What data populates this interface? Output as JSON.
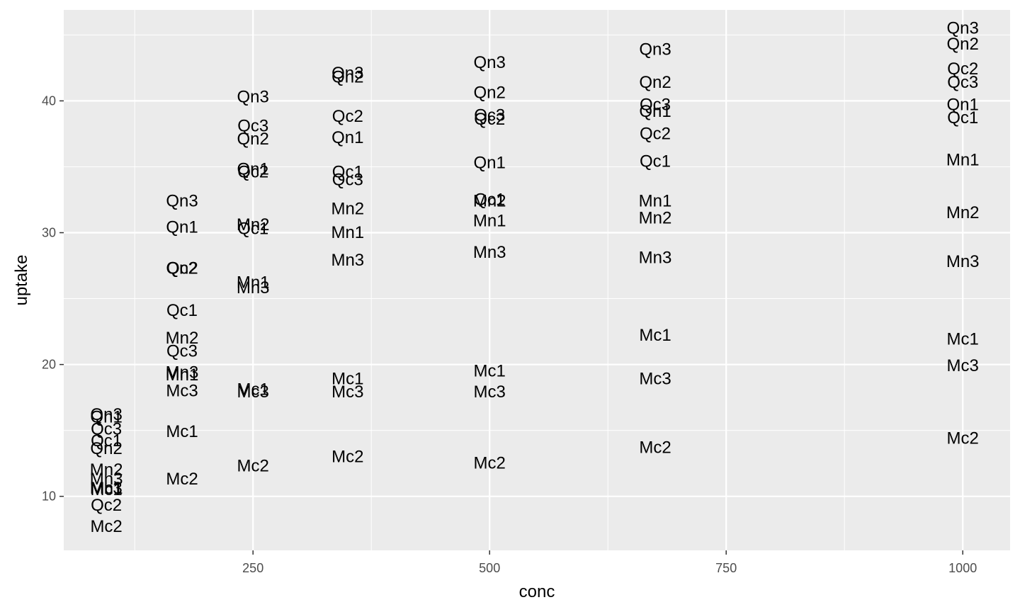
{
  "chart_data": {
    "type": "scatter",
    "marker": "text-labels",
    "xlabel": "conc",
    "ylabel": "uptake",
    "xlim": [
      50,
      1050
    ],
    "ylim": [
      5.9,
      46.9
    ],
    "x_ticks": [
      250,
      500,
      750,
      1000
    ],
    "x_tick_labels": [
      "250",
      "500",
      "750",
      "1000"
    ],
    "x_minor_grid": [
      125,
      375,
      625,
      875
    ],
    "y_ticks": [
      10,
      20,
      30,
      40
    ],
    "y_tick_labels": [
      "10",
      "20",
      "30",
      "40"
    ],
    "y_minor_grid": [
      15,
      25,
      35,
      45
    ],
    "grid": true,
    "legend": "none",
    "colors": {
      "panel_background": "#ebebeb",
      "grid_major": "#ffffff",
      "grid_minor": "#ffffff",
      "label_text": "#000000",
      "tick_text": "#4d4d4d"
    },
    "points": [
      {
        "label": "Qn1",
        "x": 95,
        "y": 16.0
      },
      {
        "label": "Qn2",
        "x": 95,
        "y": 13.6
      },
      {
        "label": "Qn3",
        "x": 95,
        "y": 16.2
      },
      {
        "label": "Qc1",
        "x": 95,
        "y": 14.2
      },
      {
        "label": "Qc2",
        "x": 95,
        "y": 9.3
      },
      {
        "label": "Qc3",
        "x": 95,
        "y": 15.1
      },
      {
        "label": "Mn1",
        "x": 95,
        "y": 10.6
      },
      {
        "label": "Mn2",
        "x": 95,
        "y": 12.0
      },
      {
        "label": "Mn3",
        "x": 95,
        "y": 11.3
      },
      {
        "label": "Mc1",
        "x": 95,
        "y": 10.5
      },
      {
        "label": "Mc2",
        "x": 95,
        "y": 7.7
      },
      {
        "label": "Mc3",
        "x": 95,
        "y": 10.6
      },
      {
        "label": "Qn1",
        "x": 175,
        "y": 30.4
      },
      {
        "label": "Qn2",
        "x": 175,
        "y": 27.3
      },
      {
        "label": "Qn3",
        "x": 175,
        "y": 32.4
      },
      {
        "label": "Qc1",
        "x": 175,
        "y": 24.1
      },
      {
        "label": "Qc2",
        "x": 175,
        "y": 27.3
      },
      {
        "label": "Qc3",
        "x": 175,
        "y": 21.0
      },
      {
        "label": "Mn1",
        "x": 175,
        "y": 19.2
      },
      {
        "label": "Mn2",
        "x": 175,
        "y": 22.0
      },
      {
        "label": "Mn3",
        "x": 175,
        "y": 19.4
      },
      {
        "label": "Mc1",
        "x": 175,
        "y": 14.9
      },
      {
        "label": "Mc2",
        "x": 175,
        "y": 11.3
      },
      {
        "label": "Mc3",
        "x": 175,
        "y": 18.0
      },
      {
        "label": "Qn1",
        "x": 250,
        "y": 34.8
      },
      {
        "label": "Qn2",
        "x": 250,
        "y": 37.1
      },
      {
        "label": "Qn3",
        "x": 250,
        "y": 40.3
      },
      {
        "label": "Qc1",
        "x": 250,
        "y": 30.3
      },
      {
        "label": "Qc2",
        "x": 250,
        "y": 34.6
      },
      {
        "label": "Qc3",
        "x": 250,
        "y": 38.1
      },
      {
        "label": "Mn1",
        "x": 250,
        "y": 26.2
      },
      {
        "label": "Mn2",
        "x": 250,
        "y": 30.6
      },
      {
        "label": "Mn3",
        "x": 250,
        "y": 25.8
      },
      {
        "label": "Mc1",
        "x": 250,
        "y": 18.1
      },
      {
        "label": "Mc2",
        "x": 250,
        "y": 12.3
      },
      {
        "label": "Mc3",
        "x": 250,
        "y": 17.9
      },
      {
        "label": "Qn1",
        "x": 350,
        "y": 37.2
      },
      {
        "label": "Qn2",
        "x": 350,
        "y": 41.8
      },
      {
        "label": "Qn3",
        "x": 350,
        "y": 42.1
      },
      {
        "label": "Qc1",
        "x": 350,
        "y": 34.6
      },
      {
        "label": "Qc2",
        "x": 350,
        "y": 38.8
      },
      {
        "label": "Qc3",
        "x": 350,
        "y": 34.0
      },
      {
        "label": "Mn1",
        "x": 350,
        "y": 30.0
      },
      {
        "label": "Mn2",
        "x": 350,
        "y": 31.8
      },
      {
        "label": "Mn3",
        "x": 350,
        "y": 27.9
      },
      {
        "label": "Mc1",
        "x": 350,
        "y": 18.9
      },
      {
        "label": "Mc2",
        "x": 350,
        "y": 13.0
      },
      {
        "label": "Mc3",
        "x": 350,
        "y": 17.9
      },
      {
        "label": "Qn1",
        "x": 500,
        "y": 35.3
      },
      {
        "label": "Qn2",
        "x": 500,
        "y": 40.6
      },
      {
        "label": "Qn3",
        "x": 500,
        "y": 42.9
      },
      {
        "label": "Qc1",
        "x": 500,
        "y": 32.5
      },
      {
        "label": "Qc2",
        "x": 500,
        "y": 38.6
      },
      {
        "label": "Qc3",
        "x": 500,
        "y": 38.9
      },
      {
        "label": "Mn1",
        "x": 500,
        "y": 30.9
      },
      {
        "label": "Mn2",
        "x": 500,
        "y": 32.4
      },
      {
        "label": "Mn3",
        "x": 500,
        "y": 28.5
      },
      {
        "label": "Mc1",
        "x": 500,
        "y": 19.5
      },
      {
        "label": "Mc2",
        "x": 500,
        "y": 12.5
      },
      {
        "label": "Mc3",
        "x": 500,
        "y": 17.9
      },
      {
        "label": "Qn1",
        "x": 675,
        "y": 39.2
      },
      {
        "label": "Qn2",
        "x": 675,
        "y": 41.4
      },
      {
        "label": "Qn3",
        "x": 675,
        "y": 43.9
      },
      {
        "label": "Qc1",
        "x": 675,
        "y": 35.4
      },
      {
        "label": "Qc2",
        "x": 675,
        "y": 37.5
      },
      {
        "label": "Qc3",
        "x": 675,
        "y": 39.7
      },
      {
        "label": "Mn1",
        "x": 675,
        "y": 32.4
      },
      {
        "label": "Mn2",
        "x": 675,
        "y": 31.1
      },
      {
        "label": "Mn3",
        "x": 675,
        "y": 28.1
      },
      {
        "label": "Mc1",
        "x": 675,
        "y": 22.2
      },
      {
        "label": "Mc2",
        "x": 675,
        "y": 13.7
      },
      {
        "label": "Mc3",
        "x": 675,
        "y": 18.9
      },
      {
        "label": "Qn1",
        "x": 1000,
        "y": 39.7
      },
      {
        "label": "Qn2",
        "x": 1000,
        "y": 44.3
      },
      {
        "label": "Qn3",
        "x": 1000,
        "y": 45.5
      },
      {
        "label": "Qc1",
        "x": 1000,
        "y": 38.7
      },
      {
        "label": "Qc2",
        "x": 1000,
        "y": 42.4
      },
      {
        "label": "Qc3",
        "x": 1000,
        "y": 41.4
      },
      {
        "label": "Mn1",
        "x": 1000,
        "y": 35.5
      },
      {
        "label": "Mn2",
        "x": 1000,
        "y": 31.5
      },
      {
        "label": "Mn3",
        "x": 1000,
        "y": 27.8
      },
      {
        "label": "Mc1",
        "x": 1000,
        "y": 21.9
      },
      {
        "label": "Mc2",
        "x": 1000,
        "y": 14.4
      },
      {
        "label": "Mc3",
        "x": 1000,
        "y": 19.9
      }
    ]
  }
}
